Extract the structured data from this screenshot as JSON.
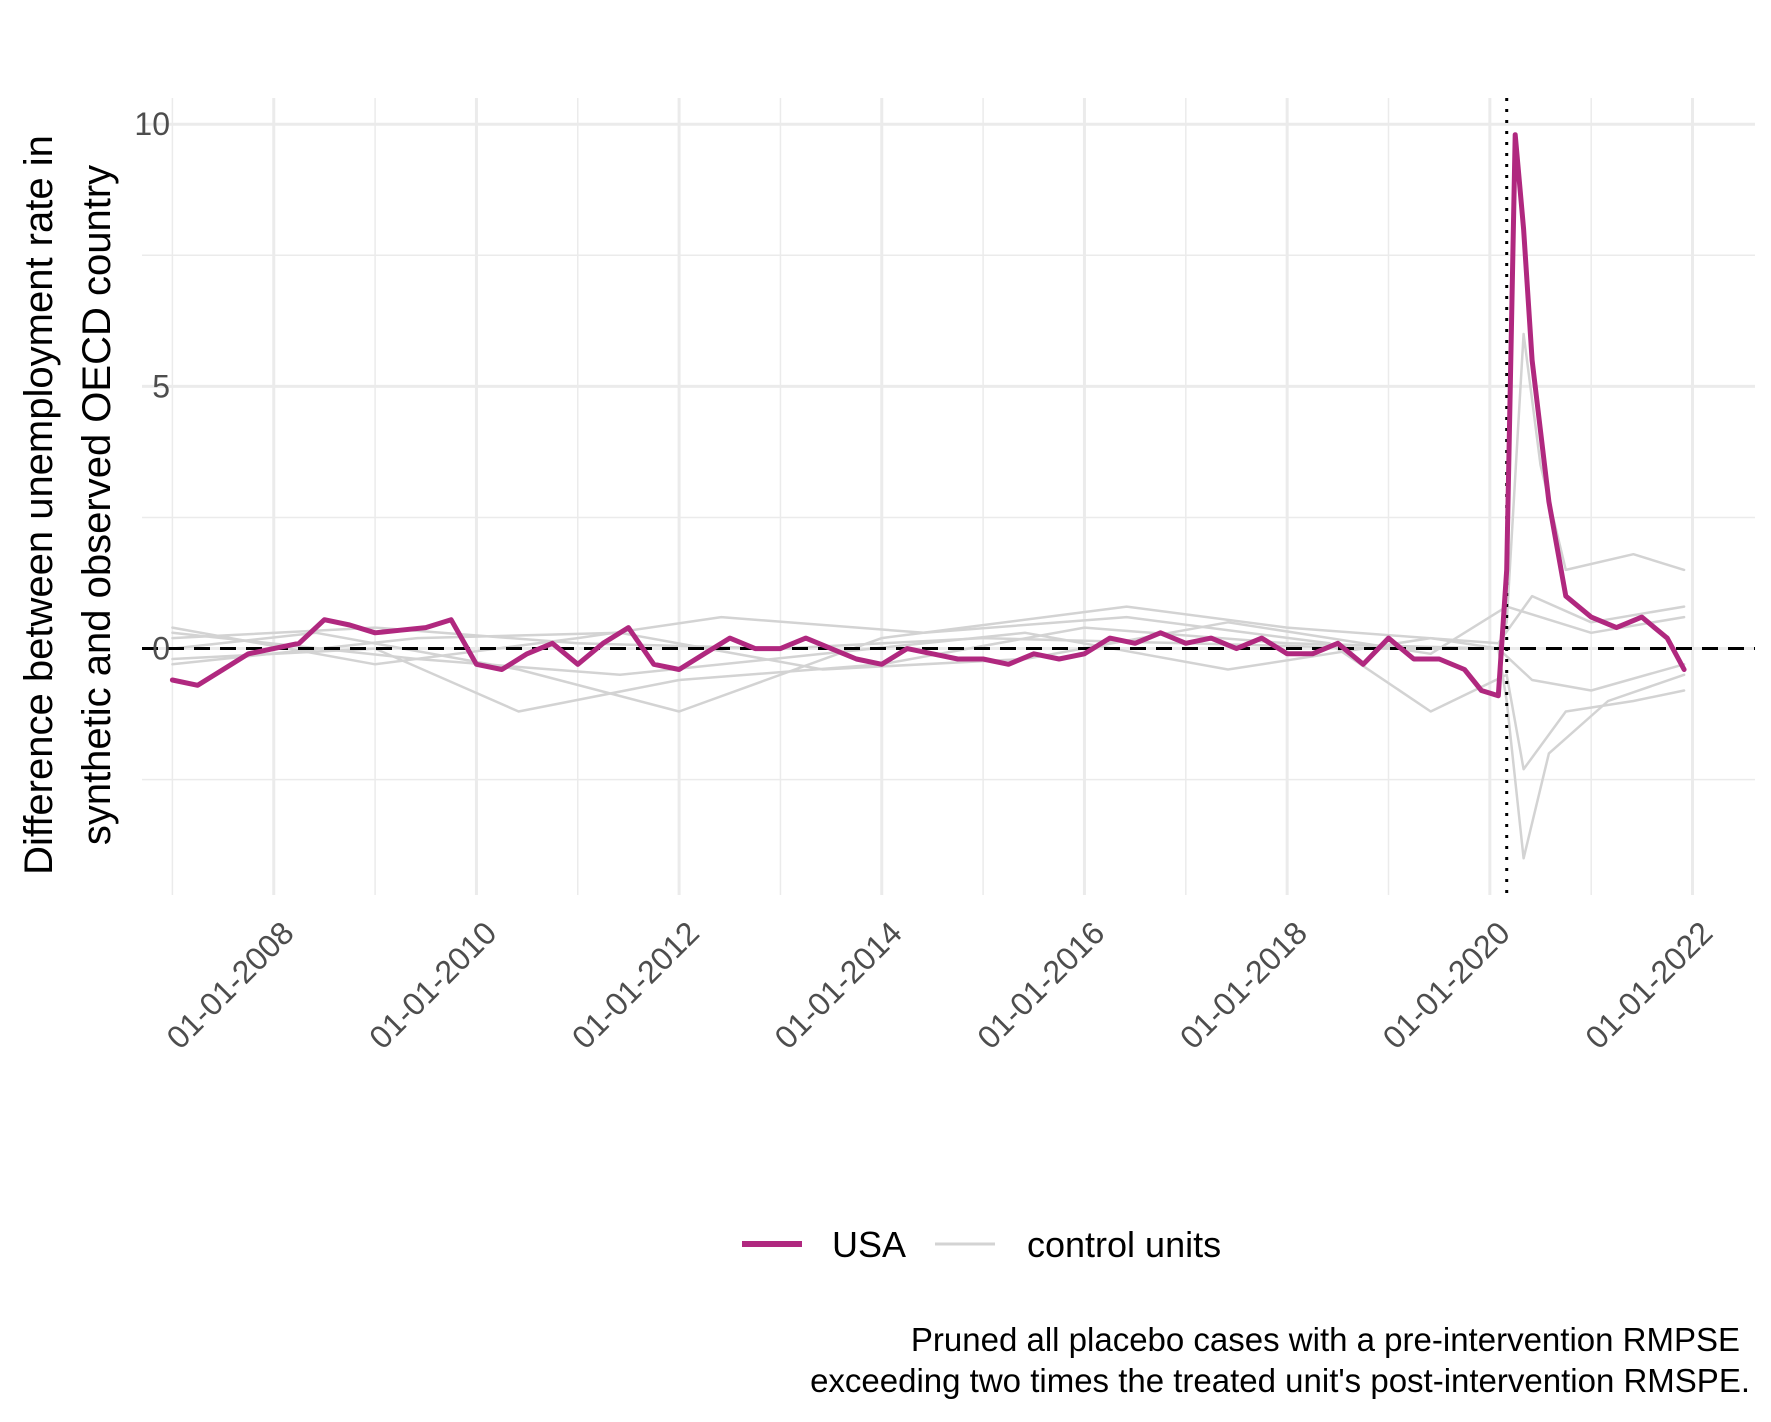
{
  "chart_data": {
    "type": "line",
    "title": "",
    "xlabel": "",
    "ylabel_lines": [
      "Difference between unemployment rate in",
      "synthetic and observed OECD country"
    ],
    "x_range": [
      "2007-01-01",
      "2021-12-01"
    ],
    "ylim": [
      -4.7,
      10.5
    ],
    "x_ticks": [
      "01-01-2008",
      "01-01-2010",
      "01-01-2012",
      "01-01-2014",
      "01-01-2016",
      "01-01-2018",
      "01-01-2020",
      "01-01-2022"
    ],
    "y_ticks": [
      {
        "value": 0,
        "label": "0"
      },
      {
        "value": 5,
        "label": "5"
      },
      {
        "value": 10,
        "label": "10"
      }
    ],
    "grid": true,
    "hline": 0,
    "intervention_date": "2020-03-01",
    "legend": {
      "position": "bottom",
      "entries": [
        {
          "label": "USA",
          "color": "#B0287F"
        },
        {
          "label": "control units",
          "color": "#D3D3D3"
        }
      ]
    },
    "caption_lines": [
      "Pruned all placebo cases with a pre-intervention RMPSE",
      "exceeding two times the treated unit's post-intervention RMSPE."
    ],
    "series": [
      {
        "name": "USA",
        "color": "#B0287F",
        "data": [
          [
            "2007-01-01",
            -0.6
          ],
          [
            "2007-04-01",
            -0.7
          ],
          [
            "2007-07-01",
            -0.4
          ],
          [
            "2007-10-01",
            -0.1
          ],
          [
            "2008-01-01",
            0.0
          ],
          [
            "2008-04-01",
            0.1
          ],
          [
            "2008-07-01",
            0.55
          ],
          [
            "2008-10-01",
            0.45
          ],
          [
            "2009-01-01",
            0.3
          ],
          [
            "2009-04-01",
            0.35
          ],
          [
            "2009-07-01",
            0.4
          ],
          [
            "2009-10-01",
            0.55
          ],
          [
            "2010-01-01",
            -0.3
          ],
          [
            "2010-04-01",
            -0.4
          ],
          [
            "2010-07-01",
            -0.1
          ],
          [
            "2010-10-01",
            0.1
          ],
          [
            "2011-01-01",
            -0.3
          ],
          [
            "2011-04-01",
            0.1
          ],
          [
            "2011-07-01",
            0.4
          ],
          [
            "2011-10-01",
            -0.3
          ],
          [
            "2012-01-01",
            -0.4
          ],
          [
            "2012-04-01",
            -0.1
          ],
          [
            "2012-07-01",
            0.2
          ],
          [
            "2012-10-01",
            0.0
          ],
          [
            "2013-01-01",
            0.0
          ],
          [
            "2013-04-01",
            0.2
          ],
          [
            "2013-07-01",
            0.0
          ],
          [
            "2013-10-01",
            -0.2
          ],
          [
            "2014-01-01",
            -0.3
          ],
          [
            "2014-04-01",
            0.0
          ],
          [
            "2014-07-01",
            -0.1
          ],
          [
            "2014-10-01",
            -0.2
          ],
          [
            "2015-01-01",
            -0.2
          ],
          [
            "2015-04-01",
            -0.3
          ],
          [
            "2015-07-01",
            -0.1
          ],
          [
            "2015-10-01",
            -0.2
          ],
          [
            "2016-01-01",
            -0.1
          ],
          [
            "2016-04-01",
            0.2
          ],
          [
            "2016-07-01",
            0.1
          ],
          [
            "2016-10-01",
            0.3
          ],
          [
            "2017-01-01",
            0.1
          ],
          [
            "2017-04-01",
            0.2
          ],
          [
            "2017-07-01",
            0.0
          ],
          [
            "2017-10-01",
            0.2
          ],
          [
            "2018-01-01",
            -0.1
          ],
          [
            "2018-04-01",
            -0.1
          ],
          [
            "2018-07-01",
            0.1
          ],
          [
            "2018-10-01",
            -0.3
          ],
          [
            "2019-01-01",
            0.2
          ],
          [
            "2019-04-01",
            -0.2
          ],
          [
            "2019-07-01",
            -0.2
          ],
          [
            "2019-10-01",
            -0.4
          ],
          [
            "2019-12-01",
            -0.8
          ],
          [
            "2020-02-01",
            -0.9
          ],
          [
            "2020-03-01",
            1.5
          ],
          [
            "2020-04-01",
            9.8
          ],
          [
            "2020-05-01",
            8.0
          ],
          [
            "2020-06-01",
            5.5
          ],
          [
            "2020-08-01",
            2.8
          ],
          [
            "2020-10-01",
            1.0
          ],
          [
            "2021-01-01",
            0.6
          ],
          [
            "2021-04-01",
            0.4
          ],
          [
            "2021-07-01",
            0.6
          ],
          [
            "2021-10-01",
            0.2
          ],
          [
            "2021-12-01",
            -0.4
          ]
        ]
      },
      {
        "name": "",
        "color": "#D3D3D3",
        "data": [
          [
            "2007-01-01",
            0.2
          ],
          [
            "2009-01-01",
            0.4
          ],
          [
            "2011-01-01",
            0.1
          ],
          [
            "2013-01-01",
            0.0
          ],
          [
            "2015-01-01",
            0.2
          ],
          [
            "2017-01-01",
            0.1
          ],
          [
            "2019-01-01",
            0.0
          ],
          [
            "2020-02-01",
            0.0
          ],
          [
            "2020-03-01",
            0.5
          ],
          [
            "2020-05-01",
            6.0
          ],
          [
            "2020-07-01",
            3.5
          ],
          [
            "2020-10-01",
            1.5
          ],
          [
            "2021-06-01",
            1.8
          ],
          [
            "2021-12-01",
            1.5
          ]
        ]
      },
      {
        "name": "",
        "color": "#D3D3D3",
        "data": [
          [
            "2007-01-01",
            -0.2
          ],
          [
            "2009-01-01",
            0.0
          ],
          [
            "2010-06-01",
            -1.2
          ],
          [
            "2012-01-01",
            -0.6
          ],
          [
            "2014-01-01",
            -0.3
          ],
          [
            "2016-01-01",
            0.4
          ],
          [
            "2018-01-01",
            0.1
          ],
          [
            "2020-02-01",
            0.0
          ],
          [
            "2020-03-01",
            -1.0
          ],
          [
            "2020-05-01",
            -4.0
          ],
          [
            "2020-08-01",
            -2.0
          ],
          [
            "2021-03-01",
            -1.0
          ],
          [
            "2021-12-01",
            -0.5
          ]
        ]
      },
      {
        "name": "",
        "color": "#D3D3D3",
        "data": [
          [
            "2007-01-01",
            0.4
          ],
          [
            "2009-01-01",
            -0.3
          ],
          [
            "2011-01-01",
            0.2
          ],
          [
            "2012-06-01",
            0.6
          ],
          [
            "2014-06-01",
            0.3
          ],
          [
            "2016-06-01",
            0.6
          ],
          [
            "2018-06-01",
            0.1
          ],
          [
            "2019-06-01",
            -1.2
          ],
          [
            "2020-03-01",
            -0.5
          ],
          [
            "2020-05-01",
            -2.3
          ],
          [
            "2020-10-01",
            -1.2
          ],
          [
            "2021-06-01",
            -1.0
          ],
          [
            "2021-12-01",
            -0.8
          ]
        ]
      },
      {
        "name": "",
        "color": "#D3D3D3",
        "data": [
          [
            "2007-01-01",
            0.0
          ],
          [
            "2008-06-01",
            0.3
          ],
          [
            "2010-06-01",
            -0.4
          ],
          [
            "2012-01-01",
            -1.2
          ],
          [
            "2014-01-01",
            0.2
          ],
          [
            "2016-06-01",
            0.8
          ],
          [
            "2018-01-01",
            0.4
          ],
          [
            "2020-02-01",
            0.1
          ],
          [
            "2020-06-01",
            1.0
          ],
          [
            "2021-01-01",
            0.5
          ],
          [
            "2021-12-01",
            0.8
          ]
        ]
      },
      {
        "name": "",
        "color": "#D3D3D3",
        "data": [
          [
            "2007-01-01",
            0.3
          ],
          [
            "2009-06-01",
            -0.2
          ],
          [
            "2011-06-01",
            -0.5
          ],
          [
            "2013-06-01",
            -0.1
          ],
          [
            "2015-06-01",
            0.3
          ],
          [
            "2017-06-01",
            -0.4
          ],
          [
            "2019-06-01",
            0.2
          ],
          [
            "2020-02-01",
            0.0
          ],
          [
            "2020-06-01",
            -0.6
          ],
          [
            "2021-01-01",
            -0.8
          ],
          [
            "2021-12-01",
            -0.3
          ]
        ]
      },
      {
        "name": "",
        "color": "#D3D3D3",
        "data": [
          [
            "2007-01-01",
            -0.3
          ],
          [
            "2009-06-01",
            0.2
          ],
          [
            "2011-06-01",
            0.3
          ],
          [
            "2013-06-01",
            -0.4
          ],
          [
            "2015-06-01",
            -0.2
          ],
          [
            "2017-06-01",
            0.5
          ],
          [
            "2019-06-01",
            -0.1
          ],
          [
            "2020-03-01",
            0.8
          ],
          [
            "2021-01-01",
            0.3
          ],
          [
            "2021-12-01",
            0.6
          ]
        ]
      }
    ]
  }
}
